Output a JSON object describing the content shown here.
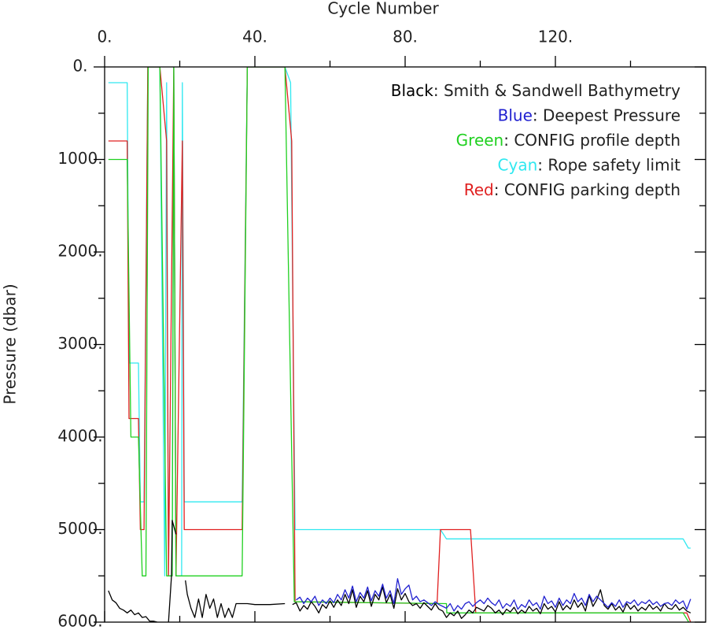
{
  "chart_data": {
    "type": "line",
    "x_label": "Cycle Number",
    "y_label": "Pressure (dbar)",
    "xlim": [
      0,
      160
    ],
    "ylim": [
      0,
      6000
    ],
    "y_inverted": true,
    "xticks": [
      {
        "value": 0,
        "label": "0."
      },
      {
        "value": 40,
        "label": "40."
      },
      {
        "value": 80,
        "label": "80."
      },
      {
        "value": 120,
        "label": "120."
      }
    ],
    "x_minor_ticks": [
      20,
      60,
      100,
      140
    ],
    "yticks": [
      {
        "value": 0,
        "label": "0."
      },
      {
        "value": 1000,
        "label": "1000."
      },
      {
        "value": 2000,
        "label": "2000."
      },
      {
        "value": 3000,
        "label": "3000."
      },
      {
        "value": 4000,
        "label": "4000."
      },
      {
        "value": 5000,
        "label": "5000."
      },
      {
        "value": 6000,
        "label": "6000."
      }
    ],
    "y_minor_ticks": [
      500,
      1500,
      2500,
      3500,
      4500,
      5500
    ],
    "legend": "upper right",
    "series": [
      {
        "name": "Black: Smith & Sandwell Bathymetry",
        "color": "#000000",
        "x": [
          1,
          2,
          3,
          4,
          5,
          6,
          7,
          8,
          9,
          10,
          11,
          12,
          13,
          14,
          null,
          17,
          17.8,
          18,
          19,
          null,
          21.5,
          22,
          23,
          24,
          25,
          26,
          27,
          28,
          29,
          30,
          31,
          32,
          33,
          34,
          35,
          36,
          38,
          40,
          44,
          48,
          null,
          50,
          51,
          52,
          53,
          54,
          55,
          56,
          57,
          58,
          59,
          60,
          61,
          62,
          63,
          64,
          65,
          66,
          67,
          68,
          69,
          70,
          71,
          72,
          73,
          74,
          75,
          76,
          77,
          78,
          79,
          80,
          81,
          82,
          83,
          84,
          85,
          86,
          87,
          88,
          89,
          90,
          91,
          92,
          93,
          94,
          95,
          96,
          97,
          98,
          99,
          100,
          101,
          102,
          103,
          104,
          105,
          106,
          107,
          108,
          109,
          110,
          111,
          112,
          113,
          114,
          115,
          116,
          117,
          118,
          119,
          120,
          121,
          122,
          123,
          124,
          125,
          126,
          127,
          128,
          129,
          130,
          131,
          132,
          133,
          134,
          135,
          136,
          137,
          138,
          139,
          140,
          141,
          142,
          143,
          144,
          145,
          146,
          147,
          148,
          149,
          150,
          151,
          152,
          153,
          154,
          155,
          156
        ],
        "values": [
          5660,
          5760,
          5790,
          5850,
          5870,
          5900,
          5870,
          5920,
          5900,
          5950,
          5940,
          5990,
          5990,
          6000,
          null,
          6000,
          5500,
          4900,
          5050,
          null,
          5550,
          5700,
          5850,
          5950,
          5750,
          5950,
          5700,
          5850,
          5750,
          5950,
          5800,
          5950,
          5850,
          5950,
          5800,
          5800,
          5800,
          5810,
          5810,
          5800,
          null,
          5810,
          5790,
          5880,
          5820,
          5860,
          5780,
          5830,
          5900,
          5810,
          5850,
          5770,
          5840,
          5760,
          5820,
          5700,
          5800,
          5650,
          5840,
          5720,
          5780,
          5660,
          5830,
          5700,
          5760,
          5620,
          5790,
          5700,
          5850,
          5640,
          5760,
          5690,
          5780,
          5820,
          5800,
          5850,
          5790,
          5830,
          5870,
          5800,
          5860,
          5880,
          5950,
          5900,
          5930,
          5880,
          5960,
          5920,
          5870,
          5900,
          5840,
          5860,
          5880,
          5820,
          5850,
          5900,
          5870,
          5920,
          5860,
          5890,
          5840,
          5910,
          5870,
          5900,
          5830,
          5880,
          5850,
          5910,
          5800,
          5860,
          5830,
          5890,
          5780,
          5870,
          5820,
          5860,
          5760,
          5840,
          5790,
          5880,
          5710,
          5830,
          5760,
          5650,
          5820,
          5860,
          5800,
          5870,
          5830,
          5890,
          5800,
          5860,
          5820,
          5880,
          5840,
          5870,
          5810,
          5860,
          5830,
          5880,
          5800,
          5850,
          5860,
          5810,
          5870,
          5840,
          5880,
          5900
        ]
      },
      {
        "name": "Blue: Deepest Pressure",
        "color": "#2020d0",
        "x": [
          51,
          52,
          53,
          54,
          55,
          56,
          57,
          58,
          59,
          60,
          61,
          62,
          63,
          64,
          65,
          66,
          67,
          68,
          69,
          70,
          71,
          72,
          73,
          74,
          75,
          76,
          77,
          78,
          79,
          80,
          81,
          82,
          83,
          84,
          85,
          86,
          87,
          88,
          89,
          90,
          91,
          92,
          93,
          94,
          95,
          96,
          97,
          98,
          99,
          100,
          101,
          102,
          103,
          104,
          105,
          106,
          107,
          108,
          109,
          110,
          111,
          112,
          113,
          114,
          115,
          116,
          117,
          118,
          119,
          120,
          121,
          122,
          123,
          124,
          125,
          126,
          127,
          128,
          129,
          130,
          131,
          132,
          133,
          134,
          135,
          136,
          137,
          138,
          139,
          140,
          141,
          142,
          143,
          144,
          145,
          146,
          147,
          148,
          149,
          150,
          151,
          152,
          153,
          154,
          155,
          156
        ],
        "values": [
          5760,
          5730,
          5800,
          5740,
          5780,
          5720,
          5820,
          5760,
          5800,
          5740,
          5790,
          5700,
          5760,
          5650,
          5740,
          5610,
          5780,
          5680,
          5740,
          5620,
          5770,
          5660,
          5720,
          5590,
          5740,
          5660,
          5800,
          5530,
          5700,
          5640,
          5600,
          5760,
          5720,
          5780,
          5760,
          5790,
          5820,
          5780,
          5810,
          5830,
          5850,
          5800,
          5880,
          5820,
          5860,
          5800,
          5780,
          5830,
          5790,
          5760,
          5800,
          5740,
          5790,
          5820,
          5760,
          5850,
          5800,
          5830,
          5760,
          5860,
          5810,
          5840,
          5760,
          5820,
          5790,
          5860,
          5720,
          5800,
          5770,
          5840,
          5740,
          5820,
          5760,
          5800,
          5690,
          5780,
          5740,
          5820,
          5700,
          5780,
          5720,
          5760,
          5800,
          5840,
          5790,
          5830,
          5760,
          5840,
          5780,
          5800,
          5760,
          5820,
          5780,
          5800,
          5760,
          5810,
          5780,
          5830,
          5800,
          5790,
          5820,
          5760,
          5800,
          5770,
          5860,
          5750
        ]
      },
      {
        "name": "Green: CONFIG profile depth",
        "color": "#20d020",
        "x": [
          1,
          6,
          7,
          9,
          10,
          11,
          11.6,
          14.7,
          16.5,
          18,
          18.4,
          19,
          21.8,
          36.6,
          38,
          48,
          50.5,
          91,
          91.1,
          154,
          155.5,
          156
        ],
        "values": [
          1000,
          1000,
          4000,
          4000,
          5500,
          5500,
          0,
          0,
          5500,
          5500,
          0,
          5500,
          5500,
          5500,
          0,
          0,
          5780,
          5800,
          5900,
          5900,
          6000,
          6000
        ]
      },
      {
        "name": "Cyan: Rope safety limit",
        "color": "#30e8f0",
        "x": [
          1,
          6,
          6.5,
          9,
          9.5,
          10.5,
          11.5,
          14.7,
          16,
          16.5,
          17,
          18,
          18.4,
          19,
          20.5,
          20.7,
          21.2,
          36.6,
          38,
          48,
          49.5,
          50.7,
          89.4,
          91,
          154,
          155.4,
          156
        ],
        "values": [
          170,
          170,
          3200,
          3200,
          4700,
          4700,
          0,
          0,
          5500,
          170,
          5500,
          5500,
          0,
          5500,
          5500,
          170,
          4700,
          4700,
          0,
          0,
          170,
          5000,
          5000,
          5100,
          5100,
          5200,
          5200
        ]
      },
      {
        "name": "Red: CONFIG parking depth",
        "color": "#e02020",
        "x": [
          1,
          6,
          6.5,
          9,
          9.5,
          10.5,
          11.5,
          14.7,
          16.5,
          17,
          18.4,
          19,
          20.7,
          21.2,
          36.6,
          38,
          48,
          49.8,
          50.7,
          88.5,
          89.4,
          97.4,
          98.8,
          155,
          156
        ],
        "values": [
          800,
          800,
          3800,
          3800,
          5000,
          5000,
          0,
          0,
          800,
          5500,
          0,
          5500,
          800,
          5000,
          5000,
          0,
          0,
          800,
          5780,
          5800,
          5000,
          5000,
          5900,
          5900,
          6000
        ]
      }
    ]
  }
}
